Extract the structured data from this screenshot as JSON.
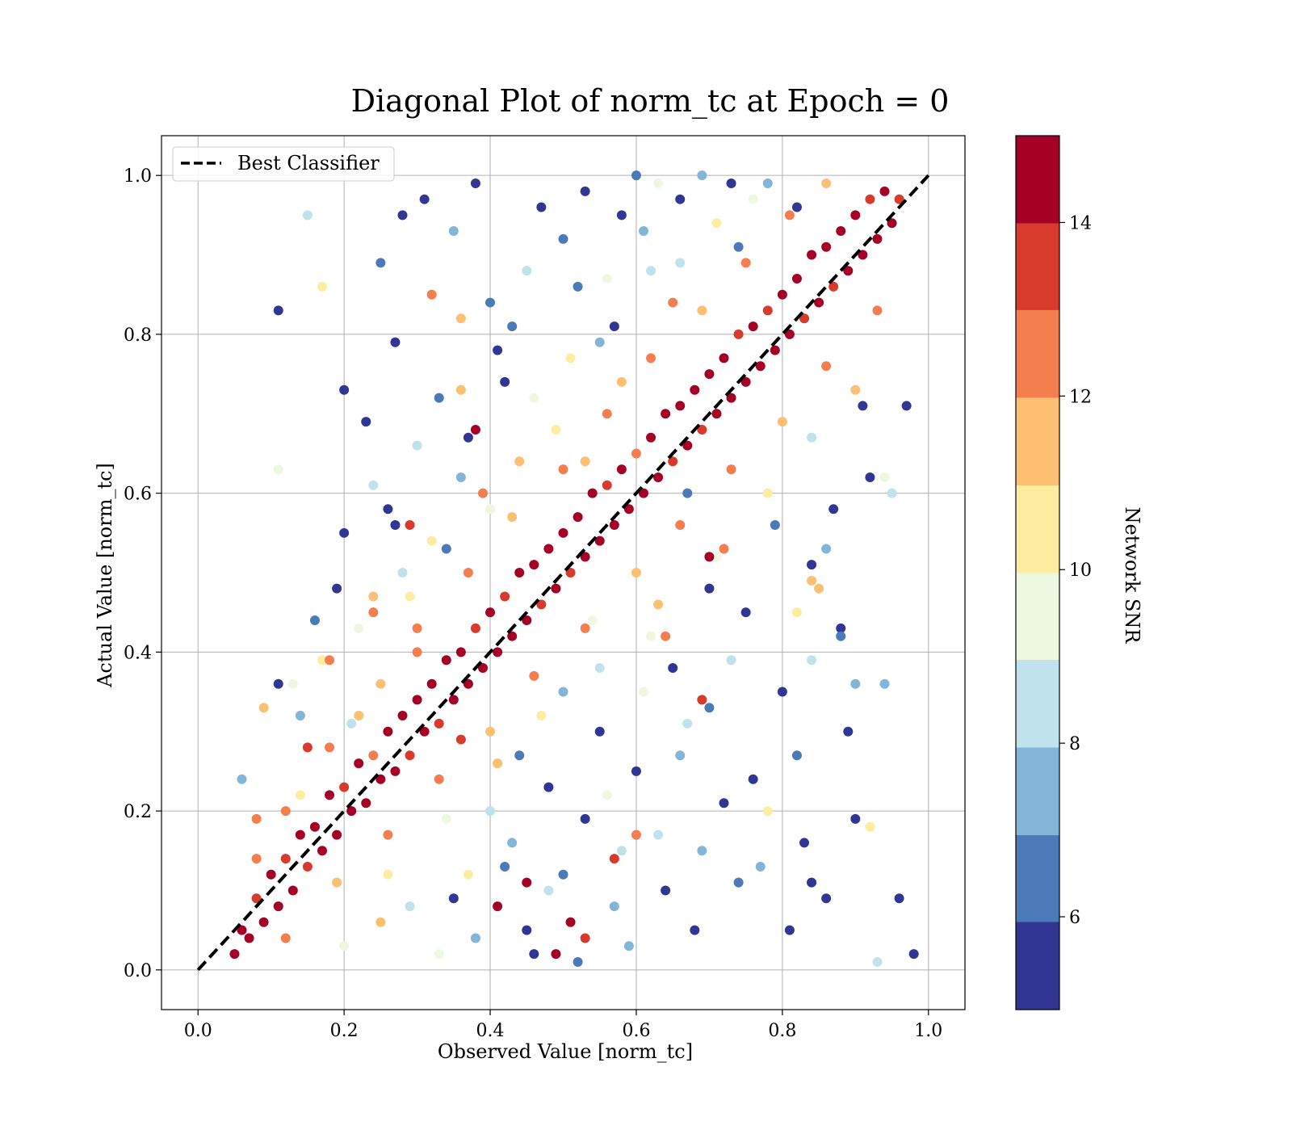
{
  "chart_data": {
    "type": "scatter",
    "title": "Diagonal Plot of norm_tc at Epoch = 0",
    "xlabel": "Observed Value [norm_tc]",
    "ylabel": "Actual Value [norm_tc]",
    "xlim": [
      -0.05,
      1.05
    ],
    "ylim": [
      -0.05,
      1.05
    ],
    "xticks": [
      0.0,
      0.2,
      0.4,
      0.6,
      0.8,
      1.0
    ],
    "yticks": [
      0.0,
      0.2,
      0.4,
      0.6,
      0.8,
      1.0
    ],
    "xtick_labels": [
      "0.0",
      "0.2",
      "0.4",
      "0.6",
      "0.8",
      "1.0"
    ],
    "ytick_labels": [
      "0.0",
      "0.2",
      "0.4",
      "0.6",
      "0.8",
      "1.0"
    ],
    "grid": true,
    "legend": {
      "placement": "top-left",
      "entries": [
        {
          "label": "Best Classifier",
          "style": "dashed",
          "color": "#000000"
        }
      ]
    },
    "reference_line": {
      "name": "Best Classifier",
      "x": [
        0.0,
        1.0
      ],
      "y": [
        0.0,
        1.0
      ]
    },
    "colorbar": {
      "label": "Network SNR",
      "range": [
        4.93,
        15.0
      ],
      "tick_values": [
        6,
        8,
        10,
        12,
        14
      ],
      "tick_labels": [
        "6",
        "8",
        "10",
        "12",
        "14"
      ],
      "levels": [
        4.93,
        5.94,
        6.94,
        7.95,
        8.96,
        9.96,
        10.97,
        11.98,
        12.99,
        13.99,
        15.0
      ],
      "colors": [
        "#313695",
        "#4a7ab7",
        "#82b6d8",
        "#bfe2ed",
        "#eef8e0",
        "#feeda1",
        "#fdbf71",
        "#f57e4e",
        "#d83a2c",
        "#a50026"
      ]
    },
    "points": [
      [
        0.05,
        0.02,
        14.5
      ],
      [
        0.06,
        0.05,
        14.2
      ],
      [
        0.07,
        0.04,
        14.8
      ],
      [
        0.08,
        0.09,
        13.5
      ],
      [
        0.09,
        0.06,
        14.6
      ],
      [
        0.1,
        0.12,
        14.1
      ],
      [
        0.11,
        0.08,
        14.9
      ],
      [
        0.12,
        0.14,
        13.8
      ],
      [
        0.13,
        0.1,
        14.4
      ],
      [
        0.14,
        0.17,
        14.7
      ],
      [
        0.15,
        0.13,
        13.2
      ],
      [
        0.16,
        0.18,
        14.5
      ],
      [
        0.17,
        0.15,
        14.9
      ],
      [
        0.18,
        0.22,
        14.0
      ],
      [
        0.19,
        0.17,
        14.6
      ],
      [
        0.2,
        0.23,
        13.6
      ],
      [
        0.21,
        0.2,
        14.8
      ],
      [
        0.22,
        0.26,
        14.3
      ],
      [
        0.23,
        0.21,
        14.7
      ],
      [
        0.24,
        0.27,
        12.8
      ],
      [
        0.25,
        0.24,
        14.5
      ],
      [
        0.26,
        0.3,
        14.9
      ],
      [
        0.27,
        0.25,
        14.1
      ],
      [
        0.28,
        0.32,
        14.6
      ],
      [
        0.29,
        0.27,
        13.9
      ],
      [
        0.3,
        0.34,
        14.8
      ],
      [
        0.31,
        0.3,
        14.3
      ],
      [
        0.32,
        0.36,
        14.7
      ],
      [
        0.33,
        0.31,
        13.4
      ],
      [
        0.34,
        0.39,
        14.5
      ],
      [
        0.35,
        0.34,
        14.9
      ],
      [
        0.36,
        0.4,
        14.2
      ],
      [
        0.37,
        0.36,
        14.6
      ],
      [
        0.38,
        0.43,
        13.7
      ],
      [
        0.39,
        0.38,
        14.8
      ],
      [
        0.4,
        0.45,
        14.4
      ],
      [
        0.41,
        0.4,
        14.7
      ],
      [
        0.42,
        0.47,
        13.1
      ],
      [
        0.43,
        0.42,
        14.5
      ],
      [
        0.44,
        0.5,
        14.9
      ],
      [
        0.45,
        0.44,
        14.0
      ],
      [
        0.46,
        0.51,
        14.6
      ],
      [
        0.47,
        0.46,
        13.8
      ],
      [
        0.48,
        0.53,
        14.8
      ],
      [
        0.49,
        0.48,
        14.3
      ],
      [
        0.5,
        0.55,
        14.7
      ],
      [
        0.51,
        0.5,
        13.3
      ],
      [
        0.52,
        0.57,
        14.5
      ],
      [
        0.53,
        0.52,
        14.9
      ],
      [
        0.54,
        0.6,
        14.1
      ],
      [
        0.55,
        0.54,
        14.6
      ],
      [
        0.56,
        0.61,
        13.6
      ],
      [
        0.57,
        0.56,
        14.8
      ],
      [
        0.58,
        0.63,
        14.4
      ],
      [
        0.59,
        0.58,
        14.7
      ],
      [
        0.6,
        0.65,
        12.9
      ],
      [
        0.61,
        0.6,
        14.5
      ],
      [
        0.62,
        0.67,
        14.9
      ],
      [
        0.63,
        0.62,
        14.2
      ],
      [
        0.64,
        0.7,
        14.6
      ],
      [
        0.65,
        0.64,
        13.9
      ],
      [
        0.66,
        0.71,
        14.8
      ],
      [
        0.67,
        0.66,
        14.3
      ],
      [
        0.68,
        0.73,
        14.7
      ],
      [
        0.69,
        0.68,
        13.5
      ],
      [
        0.7,
        0.75,
        14.5
      ],
      [
        0.71,
        0.7,
        14.9
      ],
      [
        0.72,
        0.77,
        14.0
      ],
      [
        0.73,
        0.72,
        14.6
      ],
      [
        0.74,
        0.8,
        13.7
      ],
      [
        0.75,
        0.74,
        14.8
      ],
      [
        0.76,
        0.81,
        14.4
      ],
      [
        0.77,
        0.76,
        14.7
      ],
      [
        0.78,
        0.83,
        13.2
      ],
      [
        0.79,
        0.78,
        14.5
      ],
      [
        0.8,
        0.85,
        14.9
      ],
      [
        0.81,
        0.8,
        14.1
      ],
      [
        0.82,
        0.87,
        14.6
      ],
      [
        0.83,
        0.82,
        13.8
      ],
      [
        0.84,
        0.9,
        14.8
      ],
      [
        0.85,
        0.84,
        14.3
      ],
      [
        0.86,
        0.91,
        14.7
      ],
      [
        0.87,
        0.86,
        13.4
      ],
      [
        0.88,
        0.93,
        14.5
      ],
      [
        0.89,
        0.88,
        14.9
      ],
      [
        0.9,
        0.95,
        14.2
      ],
      [
        0.91,
        0.9,
        14.6
      ],
      [
        0.92,
        0.97,
        13.6
      ],
      [
        0.93,
        0.92,
        14.8
      ],
      [
        0.94,
        0.98,
        14.4
      ],
      [
        0.95,
        0.94,
        14.7
      ],
      [
        0.96,
        0.97,
        13.0
      ],
      [
        0.08,
        0.14,
        12.6
      ],
      [
        0.12,
        0.2,
        12.1
      ],
      [
        0.18,
        0.28,
        12.4
      ],
      [
        0.25,
        0.36,
        11.8
      ],
      [
        0.3,
        0.43,
        12.7
      ],
      [
        0.37,
        0.5,
        12.2
      ],
      [
        0.43,
        0.57,
        11.6
      ],
      [
        0.5,
        0.63,
        12.5
      ],
      [
        0.56,
        0.7,
        12.0
      ],
      [
        0.62,
        0.77,
        12.8
      ],
      [
        0.69,
        0.83,
        11.9
      ],
      [
        0.75,
        0.89,
        12.3
      ],
      [
        0.81,
        0.95,
        12.6
      ],
      [
        0.12,
        0.04,
        12.4
      ],
      [
        0.19,
        0.11,
        11.7
      ],
      [
        0.26,
        0.17,
        12.5
      ],
      [
        0.33,
        0.24,
        12.1
      ],
      [
        0.4,
        0.3,
        11.5
      ],
      [
        0.46,
        0.37,
        12.6
      ],
      [
        0.53,
        0.43,
        12.2
      ],
      [
        0.6,
        0.5,
        11.8
      ],
      [
        0.66,
        0.56,
        12.7
      ],
      [
        0.73,
        0.63,
        12.0
      ],
      [
        0.8,
        0.69,
        11.6
      ],
      [
        0.86,
        0.76,
        12.4
      ],
      [
        0.93,
        0.83,
        12.8
      ],
      [
        0.11,
        0.36,
        5.2
      ],
      [
        0.16,
        0.44,
        6.1
      ],
      [
        0.2,
        0.55,
        5.4
      ],
      [
        0.23,
        0.69,
        5.9
      ],
      [
        0.25,
        0.89,
        6.8
      ],
      [
        0.28,
        0.95,
        5.3
      ],
      [
        0.31,
        0.97,
        5.6
      ],
      [
        0.35,
        0.93,
        7.2
      ],
      [
        0.38,
        0.99,
        5.1
      ],
      [
        0.4,
        0.84,
        6.4
      ],
      [
        0.42,
        0.74,
        5.5
      ],
      [
        0.45,
        0.88,
        8.3
      ],
      [
        0.47,
        0.96,
        5.2
      ],
      [
        0.5,
        0.92,
        6.6
      ],
      [
        0.53,
        0.98,
        5.8
      ],
      [
        0.55,
        0.79,
        7.9
      ],
      [
        0.58,
        0.95,
        5.3
      ],
      [
        0.6,
        1.0,
        6.2
      ],
      [
        0.63,
        0.99,
        9.1
      ],
      [
        0.66,
        0.97,
        5.4
      ],
      [
        0.69,
        1.0,
        7.3
      ],
      [
        0.73,
        0.99,
        5.7
      ],
      [
        0.3,
        0.66,
        8.6
      ],
      [
        0.27,
        0.79,
        5.5
      ],
      [
        0.33,
        0.72,
        6.9
      ],
      [
        0.22,
        0.43,
        9.3
      ],
      [
        0.26,
        0.58,
        5.8
      ],
      [
        0.36,
        0.62,
        7.6
      ],
      [
        0.17,
        0.39,
        10.4
      ],
      [
        0.21,
        0.31,
        8.1
      ],
      [
        0.41,
        0.78,
        5.3
      ],
      [
        0.44,
        0.64,
        11.2
      ],
      [
        0.34,
        0.53,
        6.3
      ],
      [
        0.19,
        0.48,
        5.6
      ],
      [
        0.14,
        0.32,
        7.4
      ],
      [
        0.24,
        0.61,
        8.8
      ],
      [
        0.29,
        0.47,
        10.6
      ],
      [
        0.37,
        0.67,
        5.2
      ],
      [
        0.46,
        0.72,
        9.6
      ],
      [
        0.52,
        0.86,
        6.7
      ],
      [
        0.57,
        0.81,
        5.1
      ],
      [
        0.62,
        0.88,
        8.4
      ],
      [
        0.15,
        0.95,
        8.2
      ],
      [
        0.11,
        0.83,
        5.1
      ],
      [
        0.11,
        0.63,
        9.0
      ],
      [
        0.17,
        0.86,
        10.2
      ],
      [
        0.2,
        0.73,
        5.3
      ],
      [
        0.27,
        0.56,
        5.8
      ],
      [
        0.32,
        0.85,
        12.3
      ],
      [
        0.36,
        0.82,
        11.1
      ],
      [
        0.48,
        0.23,
        5.2
      ],
      [
        0.5,
        0.12,
        6.4
      ],
      [
        0.55,
        0.3,
        5.5
      ],
      [
        0.57,
        0.08,
        7.1
      ],
      [
        0.6,
        0.25,
        5.3
      ],
      [
        0.63,
        0.17,
        8.2
      ],
      [
        0.65,
        0.38,
        5.9
      ],
      [
        0.68,
        0.05,
        5.1
      ],
      [
        0.7,
        0.33,
        6.8
      ],
      [
        0.72,
        0.21,
        5.4
      ],
      [
        0.75,
        0.45,
        5.6
      ],
      [
        0.77,
        0.13,
        7.6
      ],
      [
        0.8,
        0.35,
        5.2
      ],
      [
        0.82,
        0.27,
        6.1
      ],
      [
        0.84,
        0.51,
        5.8
      ],
      [
        0.86,
        0.09,
        5.3
      ],
      [
        0.88,
        0.42,
        6.5
      ],
      [
        0.9,
        0.19,
        5.1
      ],
      [
        0.92,
        0.62,
        5.6
      ],
      [
        0.94,
        0.36,
        7.2
      ],
      [
        0.96,
        0.09,
        5.4
      ],
      [
        0.93,
        0.01,
        8.1
      ],
      [
        0.45,
        0.05,
        5.9
      ],
      [
        0.52,
        0.01,
        6.3
      ],
      [
        0.58,
        0.15,
        8.7
      ],
      [
        0.62,
        0.42,
        9.4
      ],
      [
        0.66,
        0.27,
        7.5
      ],
      [
        0.7,
        0.48,
        5.7
      ],
      [
        0.74,
        0.11,
        6.9
      ],
      [
        0.78,
        0.2,
        10.3
      ],
      [
        0.81,
        0.05,
        5.2
      ],
      [
        0.85,
        0.48,
        11.7
      ],
      [
        0.89,
        0.3,
        5.5
      ],
      [
        0.91,
        0.71,
        5.3
      ],
      [
        0.95,
        0.6,
        8.4
      ],
      [
        0.97,
        0.71,
        5.2
      ],
      [
        0.72,
        0.53,
        12.2
      ],
      [
        0.67,
        0.6,
        6.2
      ],
      [
        0.84,
        0.39,
        8.8
      ],
      [
        0.88,
        0.43,
        5.1
      ],
      [
        0.54,
        0.44,
        9.8
      ],
      [
        0.5,
        0.35,
        7.7
      ],
      [
        0.4,
        0.2,
        8.4
      ],
      [
        0.42,
        0.13,
        6.8
      ],
      [
        0.38,
        0.04,
        7.8
      ],
      [
        0.35,
        0.09,
        5.6
      ],
      [
        0.33,
        0.02,
        9.2
      ],
      [
        0.46,
        0.02,
        5.1
      ],
      [
        0.48,
        0.1,
        8.9
      ],
      [
        0.44,
        0.27,
        6.2
      ],
      [
        0.53,
        0.19,
        5.3
      ],
      [
        0.59,
        0.03,
        7.3
      ],
      [
        0.64,
        0.1,
        5.8
      ],
      [
        0.61,
        0.35,
        9.9
      ],
      [
        0.69,
        0.15,
        7.0
      ],
      [
        0.73,
        0.39,
        8.5
      ],
      [
        0.76,
        0.24,
        5.4
      ],
      [
        0.79,
        0.56,
        6.6
      ],
      [
        0.83,
        0.16,
        5.9
      ],
      [
        0.87,
        0.58,
        5.2
      ],
      [
        0.9,
        0.36,
        7.3
      ],
      [
        0.92,
        0.18,
        10.1
      ],
      [
        0.84,
        0.11,
        5.7
      ],
      [
        0.98,
        0.02,
        5.3
      ],
      [
        0.06,
        0.24,
        7.8
      ],
      [
        0.09,
        0.33,
        11.3
      ],
      [
        0.13,
        0.36,
        9.7
      ],
      [
        0.18,
        0.39,
        12.6
      ],
      [
        0.24,
        0.47,
        11.0
      ],
      [
        0.28,
        0.5,
        8.3
      ],
      [
        0.32,
        0.54,
        10.8
      ],
      [
        0.39,
        0.6,
        12.1
      ],
      [
        0.36,
        0.73,
        11.4
      ],
      [
        0.43,
        0.81,
        6.0
      ],
      [
        0.51,
        0.77,
        10.5
      ],
      [
        0.56,
        0.87,
        9.2
      ],
      [
        0.61,
        0.93,
        7.1
      ],
      [
        0.66,
        0.89,
        8.7
      ],
      [
        0.71,
        0.94,
        10.7
      ],
      [
        0.76,
        0.97,
        9.0
      ],
      [
        0.78,
        0.99,
        7.4
      ],
      [
        0.82,
        0.96,
        5.9
      ],
      [
        0.86,
        0.99,
        11.5
      ],
      [
        0.74,
        0.91,
        6.9
      ],
      [
        0.65,
        0.84,
        12.5
      ],
      [
        0.58,
        0.74,
        11.8
      ],
      [
        0.49,
        0.68,
        10.2
      ],
      [
        0.4,
        0.58,
        9.5
      ],
      [
        0.3,
        0.4,
        12.9
      ],
      [
        0.22,
        0.32,
        11.2
      ],
      [
        0.14,
        0.22,
        10.0
      ],
      [
        0.08,
        0.19,
        12.3
      ],
      [
        0.26,
        0.12,
        10.9
      ],
      [
        0.34,
        0.19,
        9.1
      ],
      [
        0.41,
        0.26,
        11.6
      ],
      [
        0.47,
        0.32,
        10.3
      ],
      [
        0.55,
        0.38,
        8.9
      ],
      [
        0.63,
        0.46,
        11.3
      ],
      [
        0.71,
        0.52,
        9.6
      ],
      [
        0.78,
        0.6,
        10.8
      ],
      [
        0.84,
        0.67,
        8.6
      ],
      [
        0.9,
        0.73,
        11.9
      ],
      [
        0.2,
        0.03,
        9.3
      ],
      [
        0.25,
        0.06,
        11.1
      ],
      [
        0.29,
        0.08,
        8.2
      ],
      [
        0.37,
        0.12,
        10.6
      ],
      [
        0.43,
        0.16,
        7.9
      ],
      [
        0.56,
        0.22,
        9.7
      ],
      [
        0.67,
        0.31,
        8.0
      ],
      [
        0.82,
        0.45,
        10.4
      ],
      [
        0.86,
        0.53,
        7.5
      ],
      [
        0.94,
        0.62,
        9.4
      ],
      [
        0.57,
        0.14,
        13.9
      ],
      [
        0.51,
        0.06,
        14.3
      ],
      [
        0.45,
        0.11,
        14.7
      ],
      [
        0.53,
        0.04,
        13.4
      ],
      [
        0.49,
        0.02,
        14.8
      ],
      [
        0.36,
        0.29,
        13.2
      ],
      [
        0.41,
        0.08,
        14.5
      ],
      [
        0.69,
        0.34,
        13.6
      ],
      [
        0.38,
        0.68,
        14.1
      ],
      [
        0.29,
        0.56,
        13.3
      ],
      [
        0.6,
        0.17,
        12.4
      ],
      [
        0.24,
        0.45,
        12.9
      ],
      [
        0.15,
        0.28,
        13.7
      ],
      [
        0.7,
        0.52,
        14.2
      ],
      [
        0.64,
        0.42,
        12.7
      ],
      [
        0.53,
        0.64,
        11.5
      ],
      [
        0.84,
        0.49,
        11.2
      ],
      [
        0.92,
        0.18,
        10.3
      ]
    ]
  }
}
